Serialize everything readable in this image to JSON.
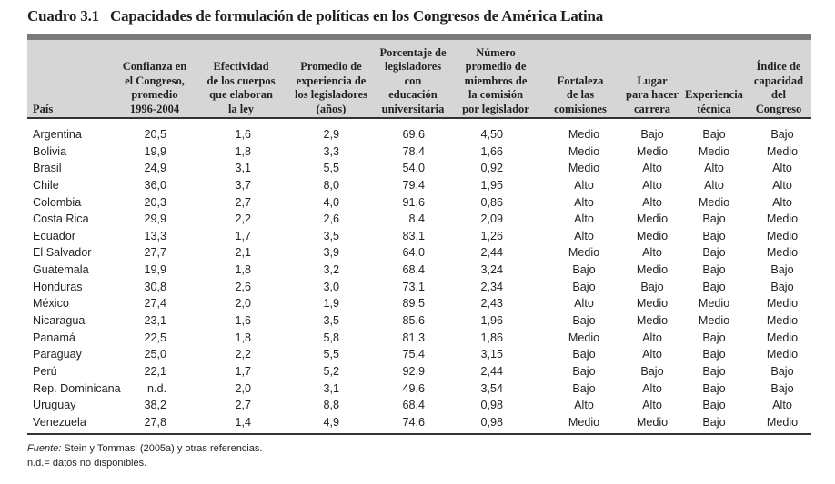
{
  "title": {
    "number": "Cuadro 3.1",
    "text": "Capacidades de formulación de políticas en los Congresos de América Latina"
  },
  "columns": [
    "País",
    "Confianza en\nel Congreso,\npromedio\n1996-2004",
    "Efectividad\nde los cuerpos\nque elaboran\nla ley",
    "Promedio de\nexperiencia de\nlos legisladores\n(años)",
    "Porcentaje de\nlegisladores\ncon\neducación\nuniversitaria",
    "Número\npromedio de\nmiembros de\nla comisión\npor legislador",
    "Fortaleza\nde las\ncomisiones",
    "Lugar\npara hacer\ncarrera",
    "Experiencia\ntécnica",
    "Índice de\ncapacidad\ndel\nCongreso"
  ],
  "rows": [
    [
      "Argentina",
      "20,5",
      "1,6",
      "2,9",
      "69,6",
      "4,50",
      "Medio",
      "Bajo",
      "Bajo",
      "Bajo"
    ],
    [
      "Bolivia",
      "19,9",
      "1,8",
      "3,3",
      "78,4",
      "1,66",
      "Medio",
      "Medio",
      "Medio",
      "Medio"
    ],
    [
      "Brasil",
      "24,9",
      "3,1",
      "5,5",
      "54,0",
      "0,92",
      "Medio",
      "Alto",
      "Alto",
      "Alto"
    ],
    [
      "Chile",
      "36,0",
      "3,7",
      "8,0",
      "79,4",
      "1,95",
      "Alto",
      "Alto",
      "Alto",
      "Alto"
    ],
    [
      "Colombia",
      "20,3",
      "2,7",
      "4,0",
      "91,6",
      "0,86",
      "Alto",
      "Alto",
      "Medio",
      "Alto"
    ],
    [
      "Costa Rica",
      "29,9",
      "2,2",
      "2,6",
      "8,4",
      "2,09",
      "Alto",
      "Medio",
      "Bajo",
      "Medio"
    ],
    [
      "Ecuador",
      "13,3",
      "1,7",
      "3,5",
      "83,1",
      "1,26",
      "Alto",
      "Medio",
      "Bajo",
      "Medio"
    ],
    [
      "El Salvador",
      "27,7",
      "2,1",
      "3,9",
      "64,0",
      "2,44",
      "Medio",
      "Alto",
      "Bajo",
      "Medio"
    ],
    [
      "Guatemala",
      "19,9",
      "1,8",
      "3,2",
      "68,4",
      "3,24",
      "Bajo",
      "Medio",
      "Bajo",
      "Bajo"
    ],
    [
      "Honduras",
      "30,8",
      "2,6",
      "3,0",
      "73,1",
      "2,34",
      "Bajo",
      "Bajo",
      "Bajo",
      "Bajo"
    ],
    [
      "México",
      "27,4",
      "2,0",
      "1,9",
      "89,5",
      "2,43",
      "Alto",
      "Medio",
      "Medio",
      "Medio"
    ],
    [
      "Nicaragua",
      "23,1",
      "1,6",
      "3,5",
      "85,6",
      "1,96",
      "Bajo",
      "Medio",
      "Medio",
      "Medio"
    ],
    [
      "Panamá",
      "22,5",
      "1,8",
      "5,8",
      "81,3",
      "1,86",
      "Medio",
      "Alto",
      "Bajo",
      "Medio"
    ],
    [
      "Paraguay",
      "25,0",
      "2,2",
      "5,5",
      "75,4",
      "3,15",
      "Bajo",
      "Alto",
      "Bajo",
      "Medio"
    ],
    [
      "Perú",
      "22,1",
      "1,7",
      "5,2",
      "92,9",
      "2,44",
      "Bajo",
      "Bajo",
      "Bajo",
      "Bajo"
    ],
    [
      "Rep. Dominicana",
      "n.d.",
      "2,0",
      "3,1",
      "49,6",
      "3,54",
      "Bajo",
      "Alto",
      "Bajo",
      "Bajo"
    ],
    [
      "Uruguay",
      "38,2",
      "2,7",
      "8,8",
      "68,4",
      "0,98",
      "Alto",
      "Alto",
      "Bajo",
      "Alto"
    ],
    [
      "Venezuela",
      "27,8",
      "1,4",
      "4,9",
      "74,6",
      "0,98",
      "Medio",
      "Medio",
      "Bajo",
      "Medio"
    ]
  ],
  "footnotes": {
    "source_label": "Fuente:",
    "source_text": " Stein y Tommasi (2005a) y otras referencias.",
    "nd_note": "n.d.= datos no disponibles."
  }
}
